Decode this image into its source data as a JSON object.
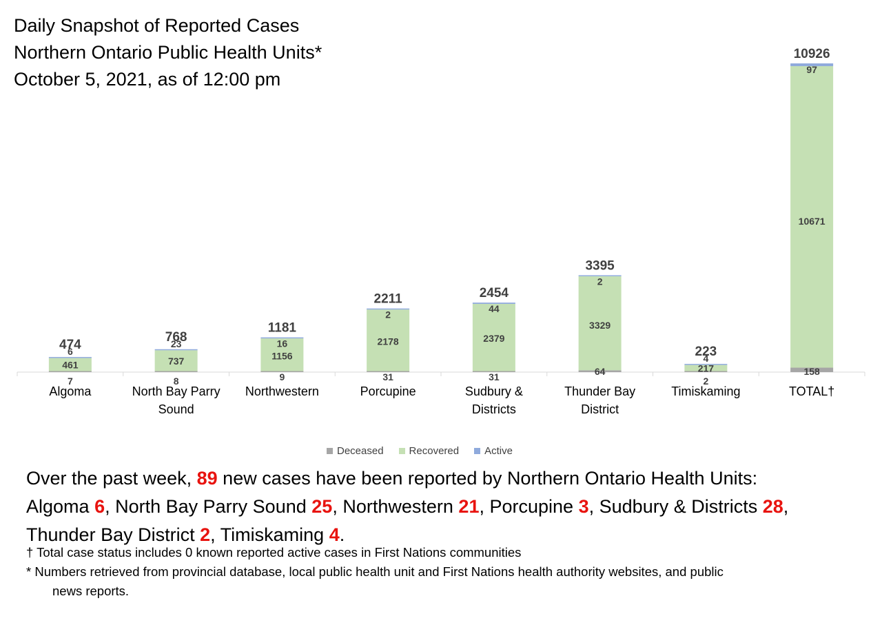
{
  "header": {
    "line1": "Daily Snapshot of Reported Cases",
    "line2": "Northern Ontario Public Health Units*",
    "line3": "October 5, 2021, as of 12:00 pm"
  },
  "colors": {
    "deceased": "#a6a6a6",
    "recovered": "#c5e0b4",
    "active": "#8faadc",
    "highlight": "#e8130f",
    "label_text": "#404040"
  },
  "chart_data": {
    "type": "bar",
    "stacked": true,
    "categories": [
      "Algoma",
      "North Bay Parry Sound",
      "Northwestern",
      "Porcupine",
      "Sudbury & Districts",
      "Thunder Bay District",
      "Timiskaming",
      "TOTAL†"
    ],
    "category_display": [
      [
        "Algoma"
      ],
      [
        "North Bay Parry",
        "Sound"
      ],
      [
        "Northwestern"
      ],
      [
        "Porcupine"
      ],
      [
        "Sudbury &",
        "Districts"
      ],
      [
        "Thunder Bay",
        "District"
      ],
      [
        "Timiskaming"
      ],
      [
        "TOTAL†"
      ]
    ],
    "series": [
      {
        "name": "Deceased",
        "values": [
          7,
          8,
          9,
          31,
          31,
          64,
          2,
          158
        ]
      },
      {
        "name": "Recovered",
        "values": [
          461,
          737,
          1156,
          2178,
          2379,
          3329,
          217,
          10671
        ]
      },
      {
        "name": "Active",
        "values": [
          6,
          23,
          16,
          2,
          44,
          2,
          4,
          97
        ]
      }
    ],
    "totals": [
      474,
      768,
      1181,
      2211,
      2454,
      3395,
      223,
      10926
    ],
    "ylim": [
      0,
      10926
    ],
    "grid": false,
    "legend_position": "bottom"
  },
  "summary": {
    "intro": "Over the past week, ",
    "total_new": "89",
    "middle": " new cases have been reported by Northern Ontario Health Units:",
    "items": [
      {
        "name": "Algoma",
        "count": "6",
        "sep": ", "
      },
      {
        "name": "North Bay Parry Sound",
        "count": "25",
        "sep": ", "
      },
      {
        "name": "Northwestern",
        "count": "21",
        "sep": ", "
      },
      {
        "name": "Porcupine",
        "count": "3",
        "sep": ", "
      },
      {
        "name": "Sudbury & Districts",
        "count": "28",
        "sep": ","
      },
      {
        "name": "Thunder Bay District",
        "count": "2",
        "sep": ", "
      },
      {
        "name": "Timiskaming",
        "count": "4",
        "sep": "."
      }
    ]
  },
  "footnotes": {
    "dagger": "† Total case status includes 0 known reported active cases in First Nations communities",
    "asterisk_line1": "* Numbers retrieved from provincial database, local public health unit and First Nations health authority websites, and public",
    "asterisk_line2": "news reports."
  }
}
